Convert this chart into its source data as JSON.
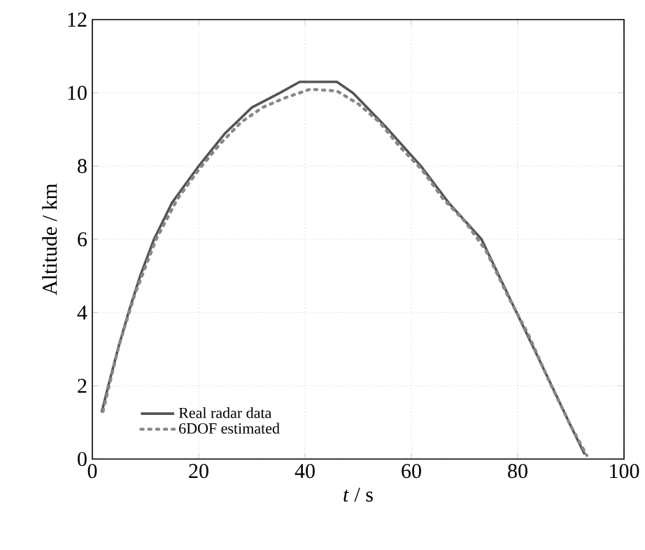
{
  "chart_data": {
    "type": "line",
    "xlabel": "*t* / s",
    "ylabel": "Altitude / km",
    "xlim": [
      0,
      100
    ],
    "ylim": [
      0,
      12
    ],
    "xticks": [
      0,
      20,
      40,
      60,
      80,
      100
    ],
    "yticks": [
      0,
      2,
      4,
      6,
      8,
      10,
      12
    ],
    "grid": true,
    "legend": "bottom left",
    "series": [
      {
        "name": "Real radar data",
        "color": "#555555",
        "line_style": "solid",
        "x": [
          1.75,
          3,
          5,
          6.8,
          9,
          11.6,
          15,
          20,
          25,
          30,
          35.3,
          39,
          46,
          49,
          55,
          61.8,
          67,
          73.2,
          79.8,
          86.4,
          90,
          92.6
        ],
        "values": [
          1.27,
          2.0,
          3.1,
          4,
          5,
          6,
          7,
          8,
          8.9,
          9.6,
          10,
          10.3,
          10.3,
          10,
          9.1,
          8,
          7,
          6,
          4,
          2,
          0.9,
          0.13
        ]
      },
      {
        "name": "6DOF estimated",
        "color": "#888888",
        "line_style": "dotted",
        "x": [
          2,
          5,
          8,
          12,
          16,
          20,
          24,
          28,
          32,
          36,
          41,
          46,
          50,
          54,
          58,
          62,
          66,
          70,
          74,
          78,
          82,
          86,
          90,
          93
        ],
        "values": [
          1.3,
          3.1,
          4.5,
          6.0,
          7.1,
          7.9,
          8.6,
          9.2,
          9.6,
          9.85,
          10.1,
          10.05,
          9.7,
          9.2,
          8.5,
          7.9,
          7.1,
          6.5,
          5.7,
          4.5,
          3.4,
          2.1,
          0.9,
          0.1
        ]
      }
    ]
  }
}
